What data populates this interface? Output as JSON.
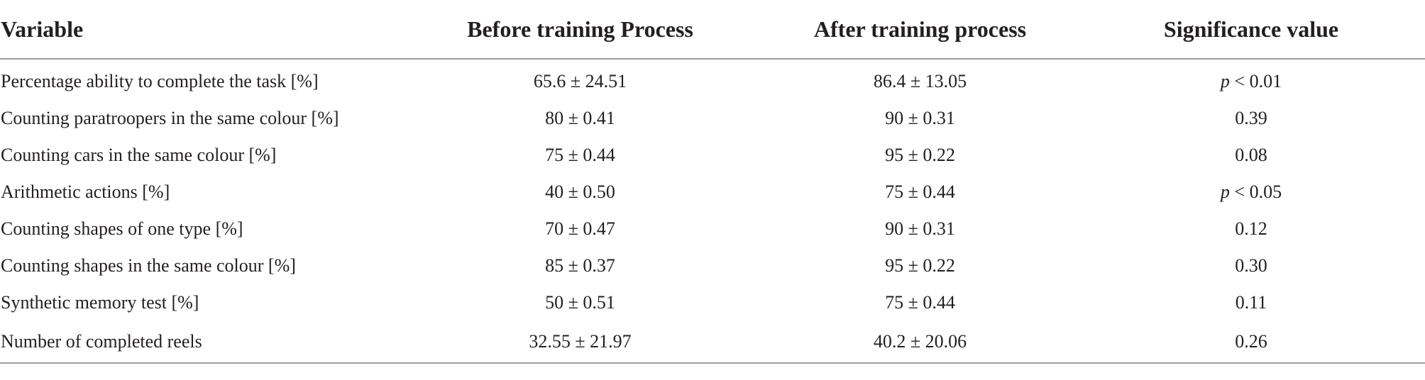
{
  "table": {
    "headers": [
      "Variable",
      "Before training Process",
      "After training process",
      "Significance value"
    ],
    "rows": [
      {
        "variable": "Percentage ability to complete the task [%]",
        "before": "65.6 ± 24.51",
        "after": "86.4 ± 13.05",
        "sig_prefix": "p",
        "sig": " < 0.01"
      },
      {
        "variable": "Counting paratroopers in the same colour [%]",
        "before": "80 ± 0.41",
        "after": "90 ± 0.31",
        "sig_prefix": "",
        "sig": "0.39"
      },
      {
        "variable": "Counting cars in the same colour [%]",
        "before": "75 ± 0.44",
        "after": "95 ± 0.22",
        "sig_prefix": "",
        "sig": "0.08"
      },
      {
        "variable": "Arithmetic actions [%]",
        "before": "40 ± 0.50",
        "after": "75 ± 0.44",
        "sig_prefix": "p",
        "sig": " < 0.05"
      },
      {
        "variable": "Counting shapes of one type [%]",
        "before": "70 ± 0.47",
        "after": "90 ± 0.31",
        "sig_prefix": "",
        "sig": "0.12"
      },
      {
        "variable": "Counting shapes in the same colour [%]",
        "before": "85 ± 0.37",
        "after": "95 ± 0.22",
        "sig_prefix": "",
        "sig": "0.30"
      },
      {
        "variable": "Synthetic memory test [%]",
        "before": "50 ± 0.51",
        "after": "75 ± 0.44",
        "sig_prefix": "",
        "sig": "0.11"
      },
      {
        "variable": "Number of completed reels",
        "before": "32.55 ± 21.97",
        "after": "40.2 ± 20.06",
        "sig_prefix": "",
        "sig": "0.26"
      }
    ]
  }
}
